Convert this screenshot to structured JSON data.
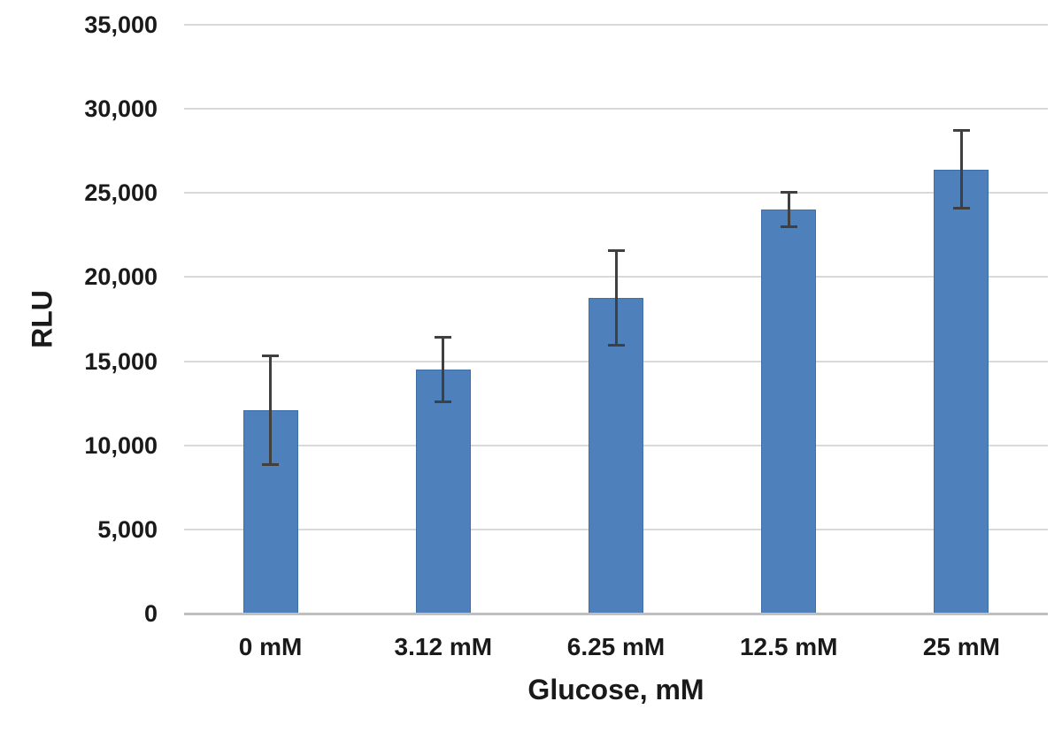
{
  "chart_data": {
    "type": "bar",
    "title": "",
    "xlabel": "Glucose, mM",
    "ylabel": "RLU",
    "categories": [
      "0 mM",
      "3.12 mM",
      "6.25 mM",
      "12.5 mM",
      "25 mM"
    ],
    "values": [
      12100,
      14500,
      18750,
      24000,
      26400
    ],
    "error_bars": [
      3250,
      1950,
      2850,
      1050,
      2350
    ],
    "ylim": [
      0,
      35000
    ],
    "ytick_step": 5000,
    "ytick_labels": [
      "0",
      "5,000",
      "10,000",
      "15,000",
      "20,000",
      "25,000",
      "30,000",
      "35,000"
    ],
    "grid": true,
    "legend_position": "none",
    "colors": {
      "bar_fill": "#4E80BC",
      "bar_border": "#3F6FA6",
      "error_bar": "#404040",
      "gridline": "#D9D9D9",
      "axis_line": "#BFBFBF",
      "text": "#1A1A1A"
    }
  }
}
